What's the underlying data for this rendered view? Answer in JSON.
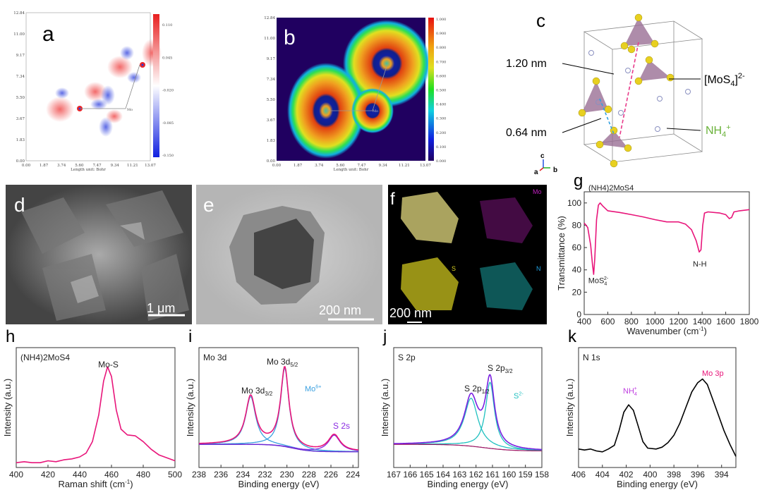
{
  "panels": {
    "a": {
      "label": "a",
      "xticks": [
        "0.00",
        "1.87",
        "3.74",
        "5.60",
        "7.47",
        "9.34",
        "11.21",
        "13.07"
      ],
      "yticks": [
        "0.00",
        "1.83",
        "3.67",
        "5.50",
        "7.34",
        "9.17",
        "11.00",
        "12.84"
      ],
      "xlabel": "Length unit: Bohr",
      "colorbar": [
        "0.110",
        "0.045",
        "-0.020",
        "-0.085",
        "-0.150"
      ],
      "atom_label": "Mo",
      "colors": {
        "pos": "#e8262a",
        "neg": "#2a3ce0"
      }
    },
    "b": {
      "label": "b",
      "xticks": [
        "0.00",
        "1.87",
        "3.74",
        "5.60",
        "7.47",
        "9.34",
        "11.21",
        "13.07"
      ],
      "yticks": [
        "0.00",
        "1.83",
        "3.67",
        "5.50",
        "7.34",
        "9.17",
        "11.00",
        "12.84"
      ],
      "xlabel": "Length unit: Bohr",
      "colorbar": [
        "1.000",
        "0.900",
        "0.800",
        "0.700",
        "0.600",
        "0.500",
        "0.400",
        "0.300",
        "0.200",
        "0.100",
        "0.000"
      ],
      "atom_label": "Mo"
    },
    "c": {
      "label": "c",
      "d1": "1.20 nm",
      "d2": "0.64 nm",
      "anion": "[MoS",
      "anion_sub": "4",
      "anion_tail": "]",
      "anion_sup": "2-",
      "cation": "NH",
      "cation_sub": "4",
      "cation_sup": "+",
      "axes": [
        "c",
        "a",
        "b"
      ],
      "colors": {
        "S": "#e8d020",
        "Mo": "#9a6f95",
        "N": "#b8bfe0",
        "cation": "#6ab23a"
      }
    },
    "d": {
      "label": "d",
      "scalebar": "1 μm"
    },
    "e": {
      "label": "e",
      "scalebar": "200 nm"
    },
    "f": {
      "label": "f",
      "scalebar": "200 nm",
      "maps": [
        "Mo",
        "S",
        "N"
      ],
      "colors": {
        "Mo": "#c020c0",
        "S": "#d8d020",
        "N": "#20c0c0"
      }
    }
  },
  "chart_data": [
    {
      "id": "g",
      "type": "line",
      "label": "g",
      "title": "(NH4)2MoS4",
      "xlabel": "Wavenumber (cm-1)",
      "ylabel": "Transmittance (%)",
      "xlim": [
        400,
        1800
      ],
      "ylim": [
        0,
        110
      ],
      "xticks": [
        400,
        600,
        800,
        1000,
        1200,
        1400,
        1600,
        1800
      ],
      "yticks": [
        0,
        20,
        40,
        60,
        80,
        100
      ],
      "color": "#e8157a",
      "annotations": [
        {
          "text": "MoS",
          "sub": "4",
          "sup": "2-",
          "x": 470,
          "y": 28
        },
        {
          "text": "N-H",
          "x": 1380,
          "y": 43
        }
      ],
      "points": [
        [
          400,
          82
        ],
        [
          430,
          78
        ],
        [
          455,
          62
        ],
        [
          470,
          45
        ],
        [
          480,
          36
        ],
        [
          490,
          50
        ],
        [
          505,
          85
        ],
        [
          520,
          98
        ],
        [
          535,
          100
        ],
        [
          560,
          97
        ],
        [
          600,
          93
        ],
        [
          700,
          91.5
        ],
        [
          800,
          89.5
        ],
        [
          900,
          87.5
        ],
        [
          1000,
          85
        ],
        [
          1100,
          83
        ],
        [
          1200,
          83
        ],
        [
          1260,
          81
        ],
        [
          1310,
          76
        ],
        [
          1350,
          66
        ],
        [
          1375,
          56
        ],
        [
          1390,
          58
        ],
        [
          1405,
          80
        ],
        [
          1420,
          91
        ],
        [
          1450,
          92
        ],
        [
          1550,
          91
        ],
        [
          1600,
          89.5
        ],
        [
          1630,
          86
        ],
        [
          1650,
          87
        ],
        [
          1670,
          92
        ],
        [
          1720,
          93
        ],
        [
          1800,
          94
        ]
      ]
    },
    {
      "id": "h",
      "type": "line",
      "label": "h",
      "title": "(NH4)2MoS4",
      "peak_label": "Mo-S",
      "xlabel": "Raman shift (cm-1)",
      "ylabel": "Intensity (a.u.)",
      "xlim": [
        400,
        500
      ],
      "ylim": [
        -0.05,
        1.2
      ],
      "xticks": [
        400,
        420,
        440,
        460,
        480,
        500
      ],
      "color": "#e8157a",
      "points": [
        [
          400,
          0.0
        ],
        [
          405,
          0.01
        ],
        [
          410,
          0.0
        ],
        [
          415,
          0.0
        ],
        [
          420,
          0.02
        ],
        [
          425,
          0.01
        ],
        [
          430,
          0.03
        ],
        [
          435,
          0.04
        ],
        [
          440,
          0.06
        ],
        [
          444,
          0.1
        ],
        [
          448,
          0.22
        ],
        [
          452,
          0.5
        ],
        [
          455,
          0.85
        ],
        [
          457.5,
          1.0
        ],
        [
          460,
          0.9
        ],
        [
          463,
          0.55
        ],
        [
          466,
          0.35
        ],
        [
          470,
          0.29
        ],
        [
          475,
          0.28
        ],
        [
          480,
          0.22
        ],
        [
          485,
          0.14
        ],
        [
          490,
          0.08
        ],
        [
          495,
          0.05
        ],
        [
          500,
          0.02
        ]
      ]
    },
    {
      "id": "i",
      "type": "line",
      "label": "i",
      "title": "Mo 3d",
      "xlabel": "Binding energy (eV)",
      "ylabel": "Intensity (a.u.)",
      "xlim": [
        238,
        223.5
      ],
      "ylim": [
        -0.2,
        1.25
      ],
      "xticks": [
        238,
        236,
        234,
        232,
        230,
        228,
        226,
        224
      ],
      "labels": [
        {
          "text": "Mo 3d",
          "sub": "3/2"
        },
        {
          "text": "Mo 3d",
          "sub": "5/2"
        },
        {
          "text": "Mo",
          "sup": "6+"
        },
        {
          "text": "S 2s"
        }
      ],
      "peaks": [
        {
          "name": "Mo 3d3/2",
          "center": 233.3,
          "amp": 0.58,
          "width": 0.55,
          "color": "#3aa0e0"
        },
        {
          "name": "Mo 3d5/2",
          "center": 230.2,
          "amp": 0.95,
          "width": 0.45,
          "color": "#3aa0e0"
        },
        {
          "name": "S 2s",
          "center": 225.7,
          "amp": 0.2,
          "width": 0.65,
          "color": "#8a2be2"
        }
      ],
      "background": {
        "left": 0.08,
        "right": -0.01,
        "step_center": 229.5,
        "color": "#6a2bd2"
      },
      "envelope_color": "#e8157a"
    },
    {
      "id": "j",
      "type": "line",
      "label": "j",
      "title": "S 2p",
      "xlabel": "Binding energy (eV)",
      "ylabel": "Intensity (a.u.)",
      "xlim": [
        167,
        158
      ],
      "ylim": [
        -0.2,
        1.25
      ],
      "xticks": [
        167,
        166,
        165,
        164,
        163,
        162,
        161,
        160,
        159,
        158
      ],
      "labels": [
        {
          "text": "S 2p",
          "sub": "1/2"
        },
        {
          "text": "S 2p",
          "sub": "3/2"
        },
        {
          "text": "S",
          "sup": "2-"
        }
      ],
      "peaks": [
        {
          "name": "S 2p1/2",
          "center": 162.3,
          "amp": 0.58,
          "width": 0.5,
          "color": "#20c0c0"
        },
        {
          "name": "S 2p3/2",
          "center": 161.15,
          "amp": 0.8,
          "width": 0.33,
          "color": "#20c0c0"
        }
      ],
      "background": {
        "left": 0.08,
        "right": 0.0,
        "step_center": 161.5,
        "color": "#a0206a"
      },
      "envelope_color": "#7a20e0"
    },
    {
      "id": "k",
      "type": "line",
      "label": "k",
      "title": "N 1s",
      "xlabel": "Binding energy (eV)",
      "ylabel": "Intensity (a.u.)",
      "xlim": [
        406,
        392.8
      ],
      "ylim": [
        -0.1,
        1.2
      ],
      "xticks": [
        406,
        404,
        402,
        400,
        398,
        396,
        394
      ],
      "color": "#000000",
      "labels": [
        {
          "text": "NH",
          "sub": "4",
          "sup": "+",
          "color": "#c040e0"
        },
        {
          "text": "Mo 3p",
          "color": "#e8157a"
        }
      ],
      "points": [
        [
          406,
          0.1
        ],
        [
          405.5,
          0.09
        ],
        [
          405,
          0.1
        ],
        [
          404.5,
          0.08
        ],
        [
          404,
          0.07
        ],
        [
          403.5,
          0.1
        ],
        [
          403,
          0.14
        ],
        [
          402.6,
          0.3
        ],
        [
          402.2,
          0.5
        ],
        [
          401.8,
          0.58
        ],
        [
          401.4,
          0.52
        ],
        [
          401,
          0.35
        ],
        [
          400.6,
          0.18
        ],
        [
          400.2,
          0.11
        ],
        [
          399.5,
          0.1
        ],
        [
          399,
          0.12
        ],
        [
          398.5,
          0.17
        ],
        [
          398,
          0.25
        ],
        [
          397.5,
          0.38
        ],
        [
          397,
          0.55
        ],
        [
          396.5,
          0.72
        ],
        [
          396,
          0.82
        ],
        [
          395.6,
          0.86
        ],
        [
          395.2,
          0.8
        ],
        [
          394.8,
          0.66
        ],
        [
          394.3,
          0.48
        ],
        [
          393.8,
          0.3
        ],
        [
          393.3,
          0.15
        ],
        [
          392.8,
          0.02
        ]
      ]
    }
  ]
}
